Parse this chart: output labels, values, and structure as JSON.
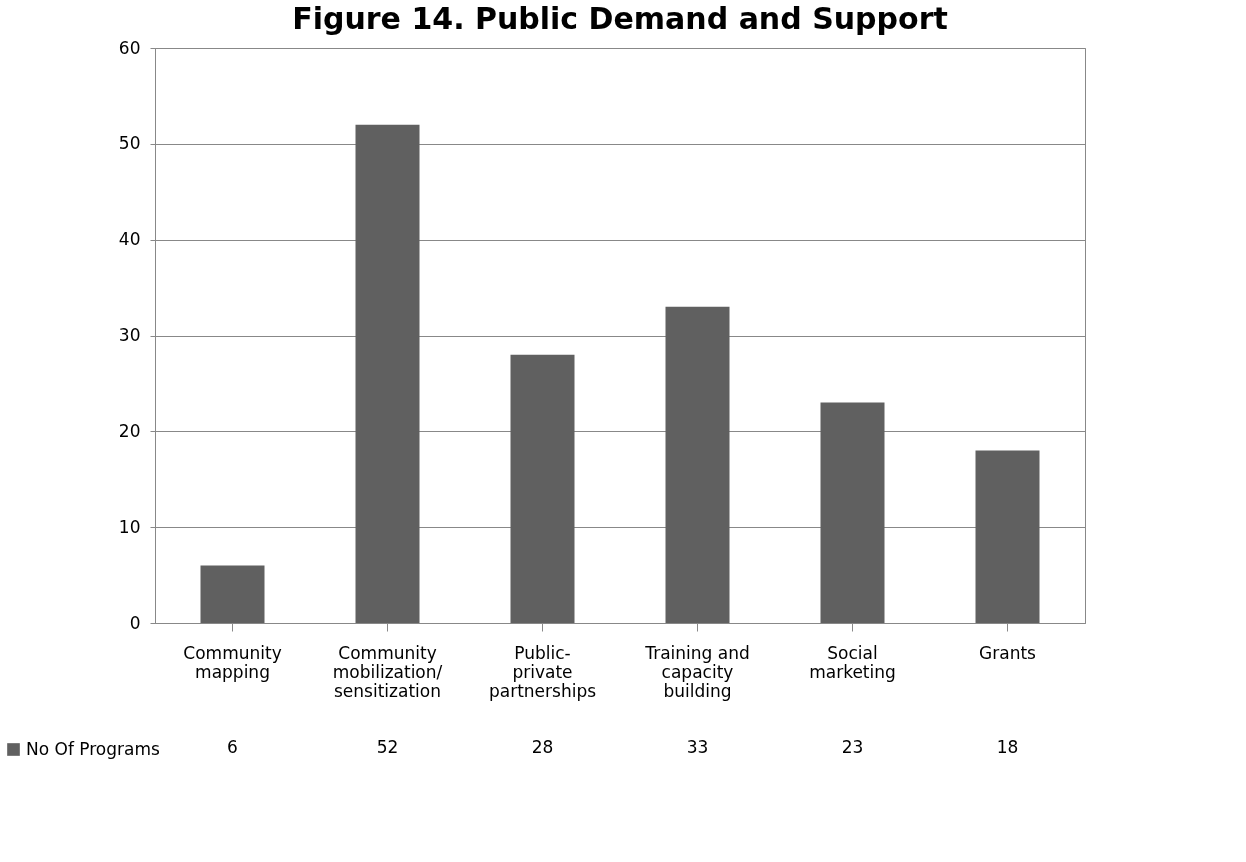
{
  "chart_data": {
    "type": "bar",
    "title": "Figure 14. Public Demand and Support",
    "categories": [
      "Community mapping",
      "Community mobilization/sensitization",
      "Public-private partnerships",
      "Training and capacity building",
      "Social marketing",
      "Grants"
    ],
    "series": [
      {
        "name": "No Of Programs",
        "color": "#606060",
        "values": [
          6,
          52,
          28,
          33,
          23,
          18
        ]
      }
    ],
    "ylim": [
      0,
      60
    ],
    "yticks": [
      0,
      10,
      20,
      30,
      40,
      50,
      60
    ],
    "grid": "y",
    "legend": "bottom left",
    "data_labels": true
  }
}
